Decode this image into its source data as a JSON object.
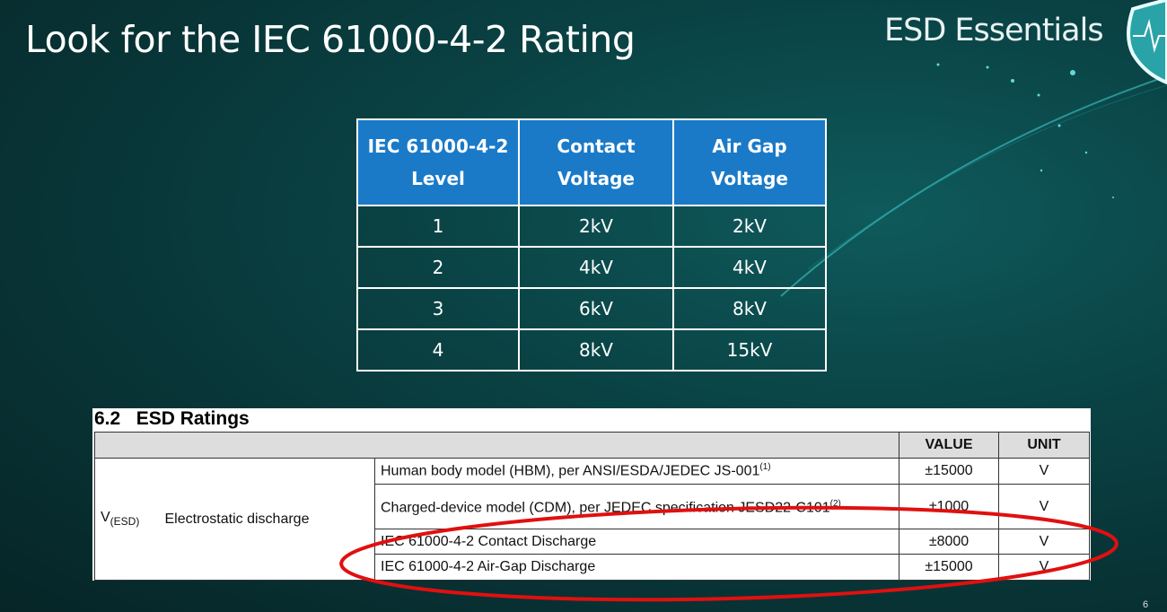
{
  "slide": {
    "title": "Look for the IEC 61000-4-2 Rating",
    "brand": "ESD Essentials",
    "page_number": "6",
    "logo": "shield-heartbeat-icon"
  },
  "iec_table": {
    "headers": [
      "IEC 61000-4-2 Level",
      "Contact Voltage",
      "Air Gap Voltage"
    ],
    "header_lines": [
      [
        "IEC 61000-4-2",
        "Level"
      ],
      [
        "Contact",
        "Voltage"
      ],
      [
        "Air Gap",
        "Voltage"
      ]
    ],
    "rows": [
      [
        "1",
        "2kV",
        "2kV"
      ],
      [
        "2",
        "4kV",
        "4kV"
      ],
      [
        "3",
        "6kV",
        "8kV"
      ],
      [
        "4",
        "8kV",
        "15kV"
      ]
    ],
    "header_color": "#1a7ac8"
  },
  "esd_ratings": {
    "heading": "6.2   ESD Ratings",
    "columns": {
      "value": "VALUE",
      "unit": "UNIT"
    },
    "symbol": "V",
    "symbol_sub": "(ESD)",
    "parameter": "Electrostatic discharge",
    "rows": [
      {
        "condition": "Human body model (HBM), per ANSI/ESDA/JEDEC JS-001",
        "note": "(1)",
        "value": "±15000",
        "unit": "V"
      },
      {
        "condition": "Charged-device model (CDM), per JEDEC specification JESD22-C101",
        "note": "(2)",
        "value": "±1000",
        "unit": "V"
      },
      {
        "condition": "IEC 61000-4-2 Contact Discharge",
        "note": "",
        "value": "±8000",
        "unit": "V"
      },
      {
        "condition": "IEC 61000-4-2 Air-Gap Discharge",
        "note": "",
        "value": "±15000",
        "unit": "V"
      }
    ],
    "highlight_color": "#e01010"
  }
}
